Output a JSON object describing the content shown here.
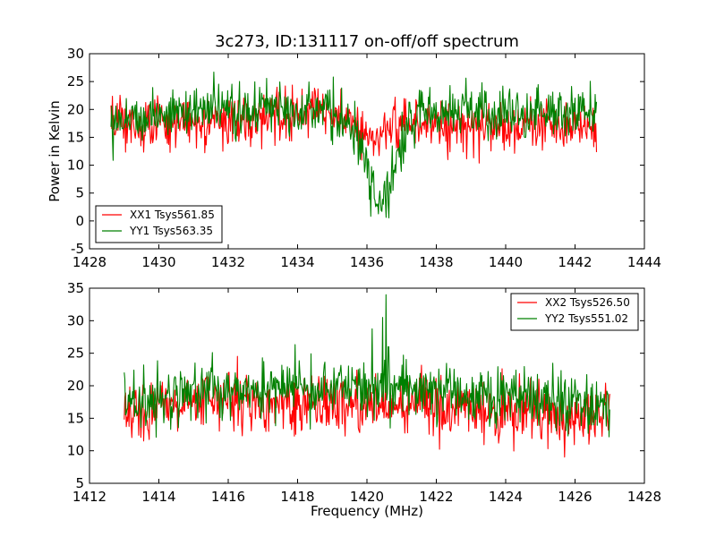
{
  "chart_data": [
    {
      "type": "line",
      "title": "3c273, ID:131117 on-off/off spectrum",
      "xlabel": "",
      "ylabel": "Power in Kelvin",
      "xlim": [
        1428,
        1444
      ],
      "ylim": [
        -5,
        30
      ],
      "xticks": [
        "1428",
        "1430",
        "1432",
        "1434",
        "1436",
        "1438",
        "1440",
        "1442",
        "1444"
      ],
      "yticks": [
        "-5",
        "0",
        "5",
        "10",
        "15",
        "20",
        "25",
        "30"
      ],
      "legend_position": "lower-left",
      "x_range": [
        1428.62,
        1442.62
      ],
      "series": [
        {
          "name": "XX1 Tsys561.85",
          "color": "#ff0000",
          "profile": [
            [
              1428.62,
              17.5
            ],
            [
              1429.5,
              17.2
            ],
            [
              1430.5,
              17.8
            ],
            [
              1431.5,
              17.5
            ],
            [
              1432.5,
              17.8
            ],
            [
              1433.5,
              19.5
            ],
            [
              1434.5,
              19.8
            ],
            [
              1435.3,
              18.0
            ],
            [
              1435.8,
              16.5
            ],
            [
              1436.2,
              14.5
            ],
            [
              1436.5,
              15.0
            ],
            [
              1436.9,
              16.8
            ],
            [
              1437.5,
              17.5
            ],
            [
              1438.5,
              17.2
            ],
            [
              1439.5,
              17.0
            ],
            [
              1440.5,
              17.2
            ],
            [
              1441.5,
              17.5
            ],
            [
              1442.62,
              17.0
            ]
          ]
        },
        {
          "name": "YY1 Tsys563.35",
          "color": "#008000",
          "profile": [
            [
              1428.62,
              18.5
            ],
            [
              1429.5,
              18.8
            ],
            [
              1430.5,
              19.5
            ],
            [
              1431.5,
              20.0
            ],
            [
              1432.5,
              19.5
            ],
            [
              1433.5,
              21.0
            ],
            [
              1434.5,
              20.2
            ],
            [
              1435.2,
              18.5
            ],
            [
              1435.7,
              15.0
            ],
            [
              1436.0,
              9.0
            ],
            [
              1436.2,
              4.5
            ],
            [
              1436.45,
              3.0
            ],
            [
              1436.7,
              8.0
            ],
            [
              1437.0,
              14.5
            ],
            [
              1437.5,
              19.0
            ],
            [
              1438.5,
              20.5
            ],
            [
              1439.5,
              19.0
            ],
            [
              1440.5,
              19.2
            ],
            [
              1441.5,
              19.5
            ],
            [
              1442.62,
              19.8
            ]
          ]
        }
      ]
    },
    {
      "type": "line",
      "title": "",
      "xlabel": "Frequency (MHz)",
      "ylabel": "",
      "xlim": [
        1412,
        1428
      ],
      "ylim": [
        5,
        35
      ],
      "xticks": [
        "1412",
        "1414",
        "1416",
        "1418",
        "1420",
        "1422",
        "1424",
        "1426",
        "1428"
      ],
      "yticks": [
        "5",
        "10",
        "15",
        "20",
        "25",
        "30",
        "35"
      ],
      "legend_position": "upper-right",
      "x_range": [
        1413.0,
        1427.0
      ],
      "series": [
        {
          "name": "XX2 Tsys526.50",
          "color": "#ff0000",
          "profile": [
            [
              1413.0,
              16.0
            ],
            [
              1414.0,
              17.0
            ],
            [
              1415.0,
              17.5
            ],
            [
              1416.0,
              17.5
            ],
            [
              1417.0,
              17.0
            ],
            [
              1418.0,
              17.0
            ],
            [
              1419.0,
              17.2
            ],
            [
              1420.0,
              17.0
            ],
            [
              1421.0,
              17.0
            ],
            [
              1422.0,
              17.0
            ],
            [
              1423.0,
              16.8
            ],
            [
              1424.0,
              16.5
            ],
            [
              1425.0,
              15.5
            ],
            [
              1426.0,
              15.0
            ],
            [
              1427.0,
              15.5
            ]
          ],
          "spikes": []
        },
        {
          "name": "YY2 Tsys551.02",
          "color": "#008000",
          "profile": [
            [
              1413.0,
              17.5
            ],
            [
              1414.0,
              18.5
            ],
            [
              1415.0,
              19.0
            ],
            [
              1416.0,
              19.2
            ],
            [
              1417.0,
              19.5
            ],
            [
              1418.0,
              19.5
            ],
            [
              1419.0,
              19.5
            ],
            [
              1420.0,
              19.5
            ],
            [
              1421.0,
              19.5
            ],
            [
              1422.0,
              19.2
            ],
            [
              1423.0,
              19.0
            ],
            [
              1424.0,
              18.5
            ],
            [
              1425.0,
              18.0
            ],
            [
              1426.0,
              17.0
            ],
            [
              1427.0,
              17.0
            ]
          ],
          "spikes": [
            [
              1420.45,
              30.5
            ],
            [
              1420.55,
              34.0
            ],
            [
              1420.62,
              26.0
            ]
          ]
        }
      ]
    }
  ]
}
